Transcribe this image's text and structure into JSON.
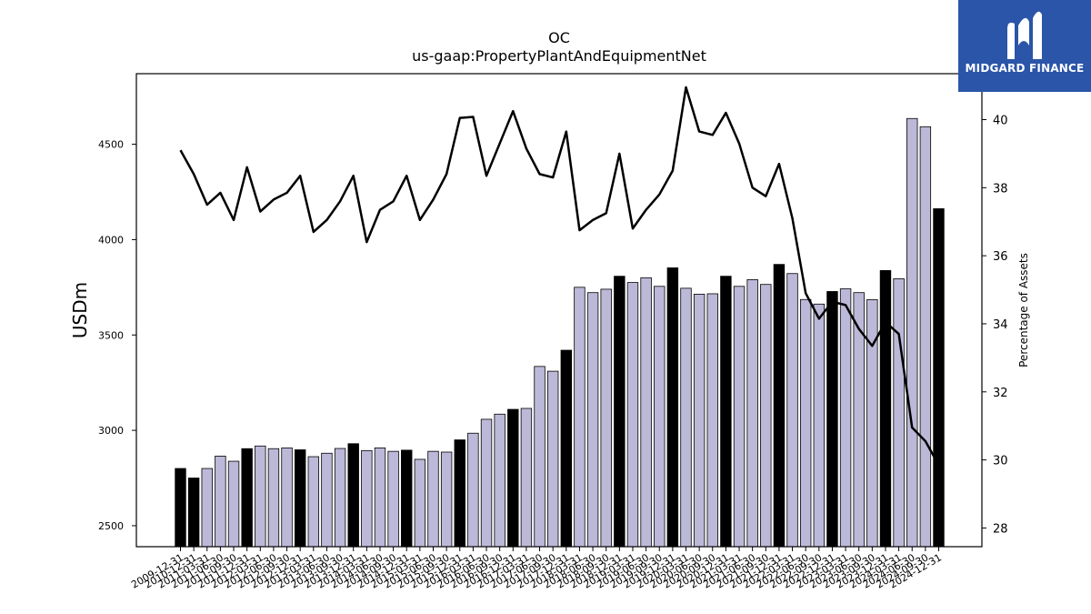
{
  "brand": {
    "name": "MIDGARD FINANCE"
  },
  "chart_data": {
    "type": "bar",
    "title": "OC",
    "subtitle": "us-gaap:PropertyPlantAndEquipmentNet",
    "ylabel": "USDm",
    "y2label": "Percentage of Assets",
    "ylim": [
      2390,
      4870
    ],
    "y2lim": [
      27.45,
      41.35
    ],
    "yticks": [
      2500,
      3000,
      3500,
      4000,
      4500
    ],
    "y2ticks": [
      28,
      30,
      32,
      34,
      36,
      38,
      40
    ],
    "colors": {
      "annual_bar": "#000000",
      "quarter_bar": "#bcb8d8",
      "line": "#000000",
      "logo_bg": "#2a55a8"
    },
    "categories": [
      "2009-12-31",
      "2010-12-31",
      "2011-03-31",
      "2011-06-30",
      "2011-09-30",
      "2011-12-31",
      "2012-03-31",
      "2012-06-30",
      "2012-09-30",
      "2012-12-31",
      "2013-03-31",
      "2013-06-30",
      "2013-09-30",
      "2013-12-31",
      "2014-03-31",
      "2014-06-30",
      "2014-09-30",
      "2014-12-31",
      "2015-03-31",
      "2015-06-30",
      "2015-09-30",
      "2015-12-31",
      "2016-03-31",
      "2016-06-30",
      "2016-09-30",
      "2016-12-31",
      "2017-03-31",
      "2017-06-30",
      "2017-09-30",
      "2017-12-31",
      "2018-03-31",
      "2018-06-30",
      "2018-09-30",
      "2018-12-31",
      "2019-03-31",
      "2019-06-30",
      "2019-09-30",
      "2019-12-31",
      "2020-03-31",
      "2020-06-30",
      "2020-09-30",
      "2020-12-31",
      "2021-03-31",
      "2021-06-30",
      "2021-09-30",
      "2021-12-31",
      "2022-03-31",
      "2022-06-30",
      "2022-09-30",
      "2022-12-31",
      "2023-03-31",
      "2023-06-30",
      "2023-09-30",
      "2023-12-31",
      "2024-03-31",
      "2024-06-30",
      "2024-09-30",
      "2024-12-31"
    ],
    "series": [
      {
        "kind": "bar",
        "values": [
          2800,
          2750,
          2800,
          2865,
          2838,
          2904,
          2918,
          2904,
          2908,
          2898,
          2862,
          2880,
          2905,
          2930,
          2894,
          2908,
          2890,
          2896,
          2848,
          2890,
          2886,
          2950,
          2985,
          3058,
          3085,
          3110,
          3115,
          3335,
          3310,
          3420,
          3750,
          3722,
          3740,
          3808,
          3775,
          3800,
          3755,
          3852,
          3745,
          3714,
          3716,
          3808,
          3755,
          3790,
          3765,
          3870,
          3822,
          3686,
          3662,
          3728,
          3742,
          3722,
          3685,
          3838,
          3795,
          4635,
          4592,
          4162
        ],
        "annual": [
          true,
          true,
          false,
          false,
          false,
          true,
          false,
          false,
          false,
          true,
          false,
          false,
          false,
          true,
          false,
          false,
          false,
          true,
          false,
          false,
          false,
          true,
          false,
          false,
          false,
          true,
          false,
          false,
          false,
          true,
          false,
          false,
          false,
          true,
          false,
          false,
          false,
          true,
          false,
          false,
          false,
          true,
          false,
          false,
          false,
          true,
          false,
          false,
          false,
          true,
          false,
          false,
          false,
          true,
          false,
          false,
          false,
          true
        ]
      },
      {
        "kind": "line",
        "axis": "right",
        "values": [
          39.1,
          38.4,
          37.5,
          37.85,
          37.05,
          38.6,
          37.3,
          37.65,
          37.85,
          38.35,
          36.7,
          37.05,
          37.6,
          38.35,
          36.4,
          37.35,
          37.6,
          38.35,
          37.05,
          37.65,
          38.4,
          40.05,
          40.08,
          38.35,
          39.3,
          40.25,
          39.15,
          38.4,
          38.3,
          39.65,
          36.75,
          37.05,
          37.25,
          39.0,
          36.8,
          37.35,
          37.8,
          38.5,
          40.95,
          39.65,
          39.55,
          40.2,
          39.3,
          38.0,
          37.75,
          38.7,
          37.1,
          34.9,
          34.15,
          34.65,
          34.55,
          33.85,
          33.35,
          34.05,
          33.7,
          30.95,
          30.55,
          29.85
        ]
      }
    ]
  }
}
